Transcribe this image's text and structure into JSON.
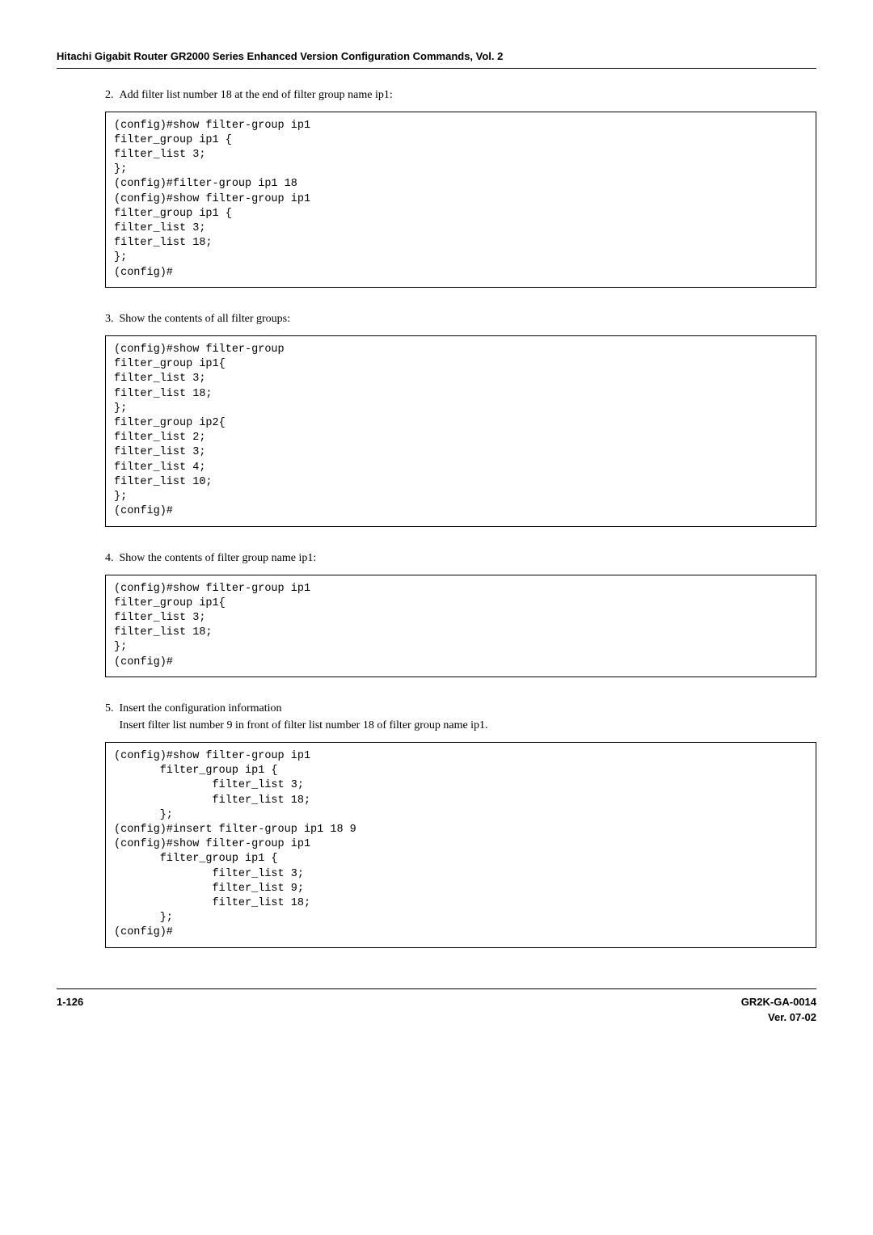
{
  "header": {
    "title": "Hitachi Gigabit Router GR2000 Series Enhanced Version Configuration Commands, Vol. 2"
  },
  "steps": {
    "s2": {
      "num": "2.",
      "text": "Add filter list number 18 at the end of filter group name ip1:",
      "code": "(config)#show filter-group ip1\nfilter_group ip1 {\nfilter_list 3;\n};\n(config)#filter-group ip1 18\n(config)#show filter-group ip1\nfilter_group ip1 {\nfilter_list 3;\nfilter_list 18;\n};\n(config)#"
    },
    "s3": {
      "num": "3.",
      "text": "Show the contents of all filter groups:",
      "code": "(config)#show filter-group\nfilter_group ip1{\nfilter_list 3;\nfilter_list 18;\n};\nfilter_group ip2{\nfilter_list 2;\nfilter_list 3;\nfilter_list 4;\nfilter_list 10;\n};\n(config)#"
    },
    "s4": {
      "num": "4.",
      "text": "Show the contents of filter group name ip1:",
      "code": "(config)#show filter-group ip1\nfilter_group ip1{\nfilter_list 3;\nfilter_list 18;\n};\n(config)#"
    },
    "s5": {
      "num": "5.",
      "text1": "Insert the configuration information",
      "text2": "Insert filter list number 9 in front of filter list number 18 of filter group name ip1.",
      "code": "(config)#show filter-group ip1\n       filter_group ip1 {\n               filter_list 3;\n               filter_list 18;\n       };\n(config)#insert filter-group ip1 18 9\n(config)#show filter-group ip1\n       filter_group ip1 {\n               filter_list 3;\n               filter_list 9;\n               filter_list 18;\n       };\n(config)#"
    }
  },
  "footer": {
    "left": "1-126",
    "right1": "GR2K-GA-0014",
    "right2": "Ver. 07-02"
  }
}
